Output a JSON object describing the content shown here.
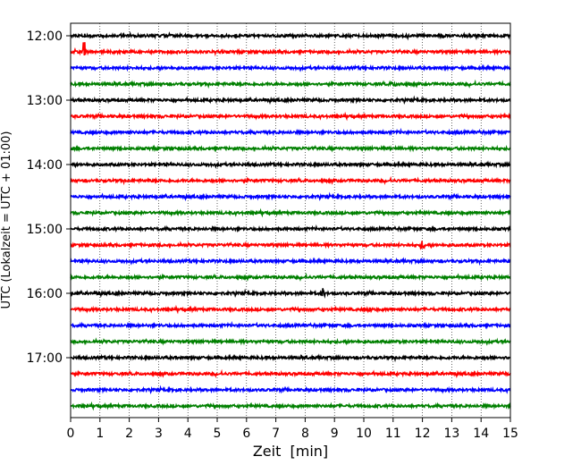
{
  "chart_data": {
    "type": "line",
    "title": "",
    "xlabel": "Zeit  [min]",
    "ylabel": "UTC (Lokalzeit = UTC + 01:00)",
    "xlim": [
      0,
      15
    ],
    "x_ticks": [
      "0",
      "1",
      "2",
      "3",
      "4",
      "5",
      "6",
      "7",
      "8",
      "9",
      "10",
      "11",
      "12",
      "13",
      "14",
      "15"
    ],
    "y_tick_labels": [
      "12:00",
      "13:00",
      "14:00",
      "15:00",
      "16:00",
      "17:00"
    ],
    "grid": "vertical dotted at each minute",
    "trace_colors": [
      "#000000",
      "#ff0000",
      "#0000ff",
      "#008000"
    ],
    "traces": [
      {
        "start": "12:00",
        "color": "#000000"
      },
      {
        "start": "12:15",
        "color": "#ff0000"
      },
      {
        "start": "12:30",
        "color": "#0000ff"
      },
      {
        "start": "12:45",
        "color": "#008000"
      },
      {
        "start": "13:00",
        "color": "#000000"
      },
      {
        "start": "13:15",
        "color": "#ff0000"
      },
      {
        "start": "13:30",
        "color": "#0000ff"
      },
      {
        "start": "13:45",
        "color": "#008000"
      },
      {
        "start": "14:00",
        "color": "#000000"
      },
      {
        "start": "14:15",
        "color": "#ff0000"
      },
      {
        "start": "14:30",
        "color": "#0000ff"
      },
      {
        "start": "14:45",
        "color": "#008000"
      },
      {
        "start": "15:00",
        "color": "#000000"
      },
      {
        "start": "15:15",
        "color": "#ff0000"
      },
      {
        "start": "15:30",
        "color": "#0000ff"
      },
      {
        "start": "15:45",
        "color": "#008000"
      },
      {
        "start": "16:00",
        "color": "#000000"
      },
      {
        "start": "16:15",
        "color": "#ff0000"
      },
      {
        "start": "16:30",
        "color": "#0000ff"
      },
      {
        "start": "16:45",
        "color": "#008000"
      },
      {
        "start": "17:00",
        "color": "#000000"
      },
      {
        "start": "17:15",
        "color": "#ff0000"
      },
      {
        "start": "17:30",
        "color": "#0000ff"
      },
      {
        "start": "17:45",
        "color": "#008000"
      }
    ],
    "events": [
      {
        "trace": "12:15",
        "minute": 0.45,
        "amplitude": "large"
      },
      {
        "trace": "15:15",
        "minute": 12.0,
        "amplitude": "medium"
      },
      {
        "trace": "16:00",
        "minute": 8.6,
        "amplitude": "medium"
      },
      {
        "trace": "16:00",
        "minute": 0.9,
        "amplitude": "small"
      },
      {
        "trace": "16:15",
        "minute": 10.2,
        "amplitude": "small"
      },
      {
        "trace": "12:45",
        "minute": 11.1,
        "amplitude": "noise"
      }
    ]
  }
}
